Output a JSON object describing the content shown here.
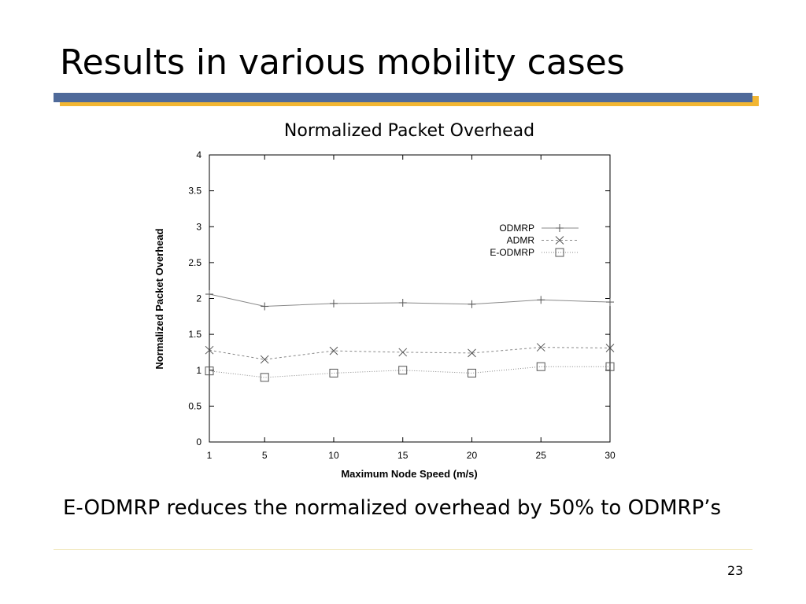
{
  "slide": {
    "title": "Results in various mobility cases",
    "body_text": "E-ODMRP reduces the normalized overhead by 50% to ODMRP’s",
    "page_number": "23"
  },
  "colors": {
    "title_bar": "#4f6a9a",
    "title_bar_accent": "#f2b632"
  },
  "chart_data": {
    "type": "line",
    "title": "Normalized Packet Overhead",
    "xlabel": "Maximum Node Speed (m/s)",
    "ylabel": "Normalized Packet Overhead",
    "xlim": [
      1,
      30
    ],
    "ylim": [
      0,
      4
    ],
    "x_ticks": [
      1,
      5,
      10,
      15,
      20,
      25,
      30
    ],
    "y_ticks": [
      0,
      0.5,
      1,
      1.5,
      2,
      2.5,
      3,
      3.5,
      4
    ],
    "y_tick_labels": [
      "0",
      "0.5",
      "1",
      "1.5",
      "2",
      "2.5",
      "3",
      "3.5",
      "4"
    ],
    "x": [
      1,
      5,
      10,
      15,
      20,
      25,
      30
    ],
    "grid": false,
    "legend_position": "top-right",
    "series": [
      {
        "name": "ODMRP",
        "marker": "plus",
        "line_style": "solid",
        "values": [
          2.06,
          1.89,
          1.93,
          1.94,
          1.92,
          1.98,
          1.95
        ]
      },
      {
        "name": "ADMR",
        "marker": "cross",
        "line_style": "dashed",
        "values": [
          1.28,
          1.15,
          1.27,
          1.25,
          1.24,
          1.32,
          1.31
        ]
      },
      {
        "name": "E-ODMRP",
        "marker": "square",
        "line_style": "dotted",
        "values": [
          0.99,
          0.9,
          0.96,
          1.0,
          0.96,
          1.05,
          1.05
        ]
      }
    ]
  }
}
